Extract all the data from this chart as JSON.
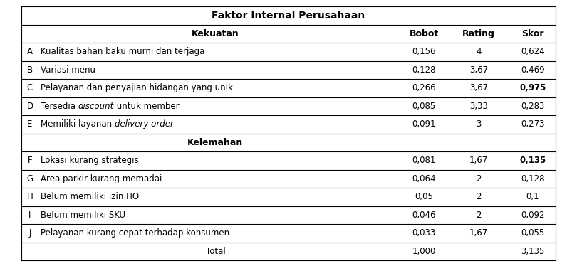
{
  "title": "Faktor Internal Perusahaan",
  "section_kekuatan": "Kekuatan",
  "section_kelemahan": "Kelemahan",
  "rows": [
    {
      "code": "A",
      "label": "Kualitas bahan baku murni dan terjaga",
      "bobot": "0,156",
      "rating": "4",
      "skor": "0,624",
      "skor_bold": false,
      "has_parts": false
    },
    {
      "code": "B",
      "label": "Variasi menu",
      "bobot": "0,128",
      "rating": "3,67",
      "skor": "0,469",
      "skor_bold": false,
      "has_parts": false
    },
    {
      "code": "C",
      "label": "Pelayanan dan penyajian hidangan yang unik",
      "bobot": "0,266",
      "rating": "3,67",
      "skor": "0,975",
      "skor_bold": true,
      "has_parts": false
    },
    {
      "code": "D",
      "label_parts": [
        {
          "text": "Tersedia ",
          "italic": false
        },
        {
          "text": "discount",
          "italic": true
        },
        {
          "text": " untuk member",
          "italic": false
        }
      ],
      "bobot": "0,085",
      "rating": "3,33",
      "skor": "0,283",
      "skor_bold": false,
      "has_parts": true
    },
    {
      "code": "E",
      "label_parts": [
        {
          "text": "Memiliki layanan ",
          "italic": false
        },
        {
          "text": "delivery order",
          "italic": true
        }
      ],
      "bobot": "0,091",
      "rating": "3",
      "skor": "0,273",
      "skor_bold": false,
      "has_parts": true
    },
    {
      "code": "F",
      "label": "Lokasi kurang strategis",
      "bobot": "0,081",
      "rating": "1,67",
      "skor": "0,135",
      "skor_bold": true,
      "has_parts": false
    },
    {
      "code": "G",
      "label": "Area parkir kurang memadai",
      "bobot": "0,064",
      "rating": "2",
      "skor": "0,128",
      "skor_bold": false,
      "has_parts": false
    },
    {
      "code": "H",
      "label": "Belum memiliki izin HO",
      "bobot": "0,05",
      "rating": "2",
      "skor": "0,1",
      "skor_bold": false,
      "has_parts": false
    },
    {
      "code": "I",
      "label": "Belum memiliki SKU",
      "bobot": "0,046",
      "rating": "2",
      "skor": "0,092",
      "skor_bold": false,
      "has_parts": false
    },
    {
      "code": "J",
      "label": "Pelayanan kurang cepat terhadap konsumen",
      "bobot": "0,033",
      "rating": "1,67",
      "skor": "0,055",
      "skor_bold": false,
      "has_parts": false
    }
  ],
  "total_label": "Total",
  "total_bobot": "1,000",
  "total_skor": "3,135",
  "font_size": 8.5,
  "header_font_size": 9,
  "title_font_size": 10,
  "bg_color": "#ffffff"
}
